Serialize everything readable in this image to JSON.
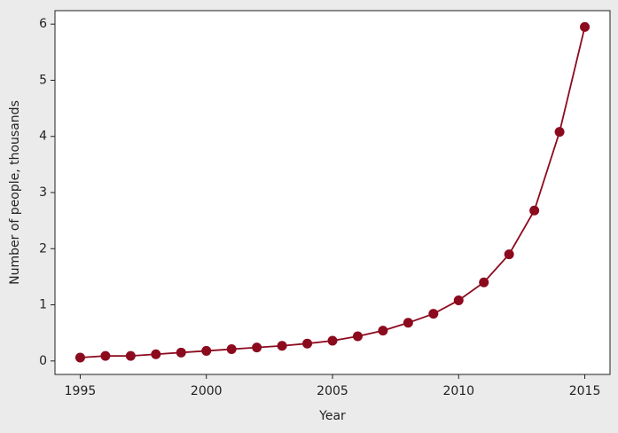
{
  "chart_data": {
    "type": "line",
    "xlabel": "Year",
    "ylabel": "Number of people, thousands",
    "x": [
      1995,
      1996,
      1997,
      1998,
      1999,
      2000,
      2001,
      2002,
      2003,
      2004,
      2005,
      2006,
      2007,
      2008,
      2009,
      2010,
      2011,
      2012,
      2013,
      2014,
      2015
    ],
    "series": [
      {
        "color": "#8c0a1e",
        "values": [
          0.06,
          0.09,
          0.09,
          0.12,
          0.15,
          0.18,
          0.21,
          0.24,
          0.27,
          0.31,
          0.36,
          0.44,
          0.54,
          0.68,
          0.84,
          1.08,
          1.4,
          1.9,
          2.68,
          4.08,
          5.95
        ]
      }
    ],
    "xlim": [
      1994,
      2016
    ],
    "xticks": [
      1995,
      2000,
      2005,
      2010,
      2015
    ],
    "ylim": [
      -0.24,
      6.24
    ],
    "yticks": [
      0,
      1,
      2,
      3,
      4,
      5,
      6
    ],
    "markers": true
  }
}
